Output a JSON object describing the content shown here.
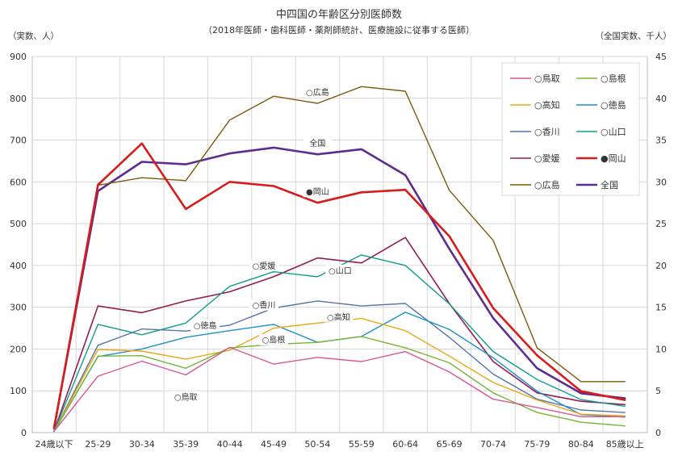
{
  "chart_data": {
    "type": "line",
    "title": "中四国の年齢区分別医師数",
    "subtitle": "（2018年医師・歯科医師・薬剤師統計、医療施設に従事する医師）",
    "ylabel_left": "（実数、人）",
    "ylabel_right": "（全国実数、千人）",
    "ylim_left": [
      0,
      900
    ],
    "ylim_right": [
      0,
      45
    ],
    "yticks_left": [
      "0",
      "100",
      "200",
      "300",
      "400",
      "500",
      "600",
      "700",
      "800",
      "900"
    ],
    "yticks_right": [
      "0",
      "5",
      "10",
      "15",
      "20",
      "25",
      "30",
      "35",
      "40",
      "45"
    ],
    "grid": true,
    "legend_position": "top-right",
    "categories": [
      "24歳以下",
      "25-29",
      "30-34",
      "35-39",
      "40-44",
      "45-49",
      "50-54",
      "55-59",
      "60-64",
      "65-69",
      "70-74",
      "75-79",
      "80-84",
      "85歳以上"
    ],
    "series": [
      {
        "name": "○鳥取",
        "color": "#d9558f",
        "width": 1.4,
        "axis": "left",
        "values": [
          3,
          135,
          171,
          138,
          204,
          164,
          180,
          170,
          194,
          145,
          80,
          60,
          38,
          38
        ],
        "label": {
          "text": "○鳥取",
          "index": 3
        }
      },
      {
        "name": "○島根",
        "color": "#77b533",
        "width": 1.4,
        "axis": "left",
        "values": [
          3,
          183,
          184,
          154,
          203,
          211,
          216,
          230,
          203,
          167,
          95,
          48,
          25,
          16
        ],
        "label": {
          "text": "○島根",
          "index": 5
        }
      },
      {
        "name": "○高知",
        "color": "#eda514",
        "width": 1.4,
        "axis": "left",
        "values": [
          3,
          199,
          195,
          176,
          197,
          250,
          262,
          273,
          244,
          183,
          120,
          78,
          44,
          40
        ],
        "label": {
          "text": "○高知",
          "index": 6
        }
      },
      {
        "name": "○徳島",
        "color": "#1c8fc9",
        "width": 1.4,
        "axis": "left",
        "values": [
          3,
          182,
          200,
          228,
          244,
          259,
          216,
          230,
          288,
          247,
          179,
          99,
          43,
          37
        ],
        "label": {
          "text": "○徳島",
          "index": 3
        }
      },
      {
        "name": "○香川",
        "color": "#5373ad",
        "width": 1.4,
        "axis": "left",
        "values": [
          3,
          209,
          248,
          243,
          257,
          298,
          315,
          303,
          309,
          228,
          140,
          80,
          54,
          48
        ],
        "label": {
          "text": "○香川",
          "index": 5
        }
      },
      {
        "name": "○山口",
        "color": "#109d8e",
        "width": 1.4,
        "axis": "left",
        "values": [
          3,
          259,
          234,
          262,
          350,
          385,
          373,
          425,
          400,
          308,
          194,
          127,
          79,
          63
        ],
        "label": {
          "text": "○山口",
          "index": 6
        }
      },
      {
        "name": "○愛媛",
        "color": "#961c50",
        "width": 1.6,
        "axis": "left",
        "values": [
          3,
          303,
          287,
          315,
          337,
          373,
          418,
          406,
          467,
          309,
          170,
          95,
          75,
          67
        ],
        "label": {
          "text": "○愛媛",
          "index": 5
        }
      },
      {
        "name": "●岡山",
        "color": "#d81b1b",
        "width": 2.6,
        "axis": "left",
        "values": [
          10,
          593,
          692,
          535,
          600,
          590,
          550,
          575,
          581,
          470,
          298,
          185,
          99,
          78
        ],
        "label": {
          "text": "●岡山",
          "index": 6
        }
      },
      {
        "name": "○広島",
        "color": "#7d5a0b",
        "width": 1.4,
        "axis": "left",
        "values": [
          3,
          592,
          610,
          603,
          748,
          805,
          788,
          828,
          817,
          580,
          460,
          203,
          122,
          122
        ],
        "label": {
          "text": "○広島",
          "index": 6
        }
      },
      {
        "name": "全国",
        "color": "#5c2d91",
        "width": 2.6,
        "axis": "right",
        "values": [
          0.6,
          28.9,
          32.4,
          32.1,
          33.4,
          34.1,
          33.3,
          33.9,
          30.8,
          22.0,
          13.7,
          7.7,
          4.7,
          4.1
        ],
        "label": {
          "text": "全国",
          "index": 6
        }
      }
    ]
  }
}
